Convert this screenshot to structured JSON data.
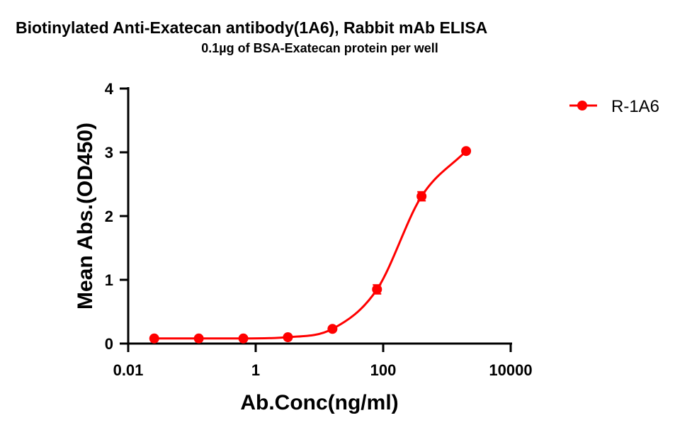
{
  "chart_data": {
    "type": "line",
    "title": "Biotinylated Anti-Exatecan antibody(1A6), Rabbit mAb ELISA",
    "subtitle": "0.1µg of BSA-Exatecan protein per well",
    "xlabel": "Ab.Conc(ng/ml)",
    "ylabel": "Mean Abs.(OD450)",
    "xscale": "log",
    "xlim": [
      0.01,
      10000
    ],
    "ylim": [
      0,
      4
    ],
    "xticks": [
      "0.01",
      "1",
      "100",
      "10000"
    ],
    "yticks": [
      "0",
      "1",
      "2",
      "3",
      "4"
    ],
    "grid": false,
    "legend_position": "top-right",
    "series": [
      {
        "name": "R-1A6",
        "color": "#ff0000",
        "marker": "circle",
        "curve": "sigmoidal fit",
        "x": [
          0.0256,
          0.128,
          0.64,
          3.2,
          16,
          80,
          400,
          2000
        ],
        "y": [
          0.08,
          0.08,
          0.08,
          0.1,
          0.23,
          0.85,
          2.31,
          3.02
        ],
        "error": [
          0.01,
          0.01,
          0.01,
          0.01,
          0.02,
          0.07,
          0.07,
          0.02
        ]
      }
    ]
  }
}
